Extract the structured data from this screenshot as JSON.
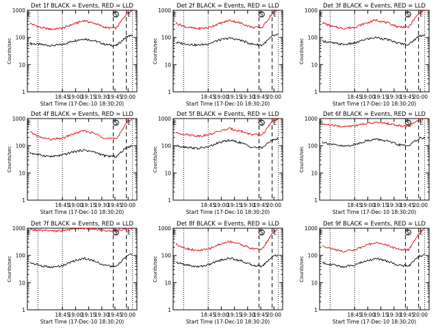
{
  "figure": {
    "ylabel": "Counts/sec",
    "xlabel": "Start Time (17-Dec-10 18:30:20)",
    "ytick_labels": [
      "1",
      "10",
      "100",
      "1000"
    ],
    "xtick_labels": [
      "18:45",
      "19:00",
      "19:15",
      "19:30",
      "19:45",
      "20:00"
    ],
    "markers": [
      "E",
      "S",
      "E"
    ],
    "colors": {
      "events": "#000000",
      "lld": "#e00000",
      "axes": "#000000"
    }
  },
  "chart_data": [
    {
      "type": "line",
      "panel": 1,
      "title": "Det 1f BLACK = Events, RED = LLD",
      "ylog": true,
      "ylim": [
        1,
        1000
      ],
      "x_minutes_from_1830": [
        0,
        10,
        20,
        30,
        40,
        50,
        60,
        70,
        80,
        90,
        95
      ],
      "series": [
        {
          "name": "Events",
          "color": "#000000",
          "values": [
            60,
            55,
            50,
            55,
            75,
            90,
            75,
            55,
            50,
            110,
            120
          ]
        },
        {
          "name": "LLD",
          "color": "#e00000",
          "values": [
            330,
            230,
            200,
            220,
            310,
            420,
            330,
            230,
            220,
            800,
            1000
          ]
        }
      ]
    },
    {
      "type": "line",
      "panel": 2,
      "title": "Det 2f BLACK = Events, RED = LLD",
      "ylog": true,
      "ylim": [
        1,
        1000
      ],
      "x_minutes_from_1830": [
        0,
        10,
        20,
        30,
        40,
        50,
        60,
        70,
        80,
        90,
        95
      ],
      "series": [
        {
          "name": "Events",
          "color": "#000000",
          "values": [
            65,
            58,
            52,
            58,
            80,
            95,
            80,
            58,
            52,
            115,
            125
          ]
        },
        {
          "name": "LLD",
          "color": "#e00000",
          "values": [
            340,
            240,
            210,
            230,
            320,
            430,
            340,
            240,
            230,
            820,
            1000
          ]
        }
      ]
    },
    {
      "type": "line",
      "panel": 3,
      "title": "Det 3f BLACK = Events, RED = LLD",
      "ylog": true,
      "ylim": [
        1,
        1000
      ],
      "x_minutes_from_1830": [
        0,
        10,
        20,
        30,
        40,
        50,
        60,
        70,
        80,
        90,
        95
      ],
      "series": [
        {
          "name": "Events",
          "color": "#000000",
          "values": [
            75,
            62,
            55,
            62,
            85,
            100,
            85,
            62,
            55,
            115,
            125
          ]
        },
        {
          "name": "LLD",
          "color": "#e00000",
          "values": [
            350,
            250,
            215,
            240,
            330,
            440,
            350,
            250,
            240,
            830,
            1000
          ]
        }
      ]
    },
    {
      "type": "line",
      "panel": 4,
      "title": "Det 4f BLACK = Events, RED = LLD",
      "ylog": true,
      "ylim": [
        1,
        1000
      ],
      "x_minutes_from_1830": [
        0,
        10,
        20,
        30,
        40,
        50,
        60,
        70,
        80,
        90,
        95
      ],
      "series": [
        {
          "name": "Events",
          "color": "#000000",
          "values": [
            55,
            45,
            40,
            45,
            60,
            70,
            58,
            42,
            40,
            90,
            100
          ]
        },
        {
          "name": "LLD",
          "color": "#e00000",
          "values": [
            320,
            200,
            170,
            190,
            270,
            360,
            280,
            190,
            180,
            750,
            1000
          ]
        }
      ]
    },
    {
      "type": "line",
      "panel": 5,
      "title": "Det 5f BLACK = Events, RED = LLD",
      "ylog": true,
      "ylim": [
        1,
        1000
      ],
      "x_minutes_from_1830": [
        0,
        10,
        20,
        30,
        40,
        50,
        60,
        70,
        80,
        90,
        95
      ],
      "series": [
        {
          "name": "Events",
          "color": "#000000",
          "values": [
            100,
            90,
            80,
            90,
            130,
            160,
            130,
            90,
            85,
            170,
            180
          ]
        },
        {
          "name": "LLD",
          "color": "#e00000",
          "values": [
            300,
            260,
            230,
            250,
            340,
            430,
            350,
            260,
            250,
            820,
            1000
          ]
        }
      ]
    },
    {
      "type": "line",
      "panel": 6,
      "title": "Det 6f BLACK = Events, RED = LLD",
      "ylog": true,
      "ylim": [
        1,
        1000
      ],
      "x_minutes_from_1830": [
        0,
        10,
        20,
        30,
        40,
        50,
        60,
        70,
        80,
        90,
        95
      ],
      "series": [
        {
          "name": "Events",
          "color": "#000000",
          "values": [
            140,
            110,
            95,
            110,
            150,
            175,
            150,
            110,
            100,
            190,
            200
          ]
        },
        {
          "name": "LLD",
          "color": "#e00000",
          "values": [
            640,
            560,
            500,
            560,
            660,
            720,
            660,
            560,
            520,
            900,
            1000
          ]
        }
      ]
    },
    {
      "type": "line",
      "panel": 7,
      "title": "Det 7f BLACK = Events, RED = LLD",
      "ylog": true,
      "ylim": [
        1,
        1000
      ],
      "x_minutes_from_1830": [
        0,
        10,
        20,
        30,
        40,
        50,
        60,
        70,
        80,
        90,
        95
      ],
      "series": [
        {
          "name": "Events",
          "color": "#000000",
          "values": [
            55,
            42,
            36,
            42,
            62,
            80,
            62,
            42,
            38,
            100,
            110
          ]
        },
        {
          "name": "LLD",
          "color": "#e00000",
          "values": [
            900,
            820,
            780,
            820,
            930,
            990,
            930,
            830,
            800,
            1000,
            1000
          ]
        }
      ]
    },
    {
      "type": "line",
      "panel": 8,
      "title": "Det 8f BLACK = Events, RED = LLD",
      "ylog": true,
      "ylim": [
        1,
        1000
      ],
      "x_minutes_from_1830": [
        0,
        10,
        20,
        30,
        40,
        50,
        60,
        70,
        80,
        90,
        95
      ],
      "series": [
        {
          "name": "Events",
          "color": "#000000",
          "values": [
            55,
            45,
            38,
            45,
            65,
            80,
            65,
            45,
            40,
            95,
            105
          ]
        },
        {
          "name": "LLD",
          "color": "#e00000",
          "values": [
            260,
            180,
            150,
            170,
            250,
            330,
            260,
            180,
            170,
            700,
            1000
          ]
        }
      ]
    },
    {
      "type": "line",
      "panel": 9,
      "title": "Det 9f BLACK = Events, RED = LLD",
      "ylog": true,
      "ylim": [
        1,
        1000
      ],
      "x_minutes_from_1830": [
        0,
        10,
        20,
        30,
        40,
        50,
        60,
        70,
        80,
        90,
        95
      ],
      "series": [
        {
          "name": "Events",
          "color": "#000000",
          "values": [
            55,
            45,
            38,
            45,
            62,
            78,
            62,
            45,
            40,
            95,
            105
          ]
        },
        {
          "name": "LLD",
          "color": "#e00000",
          "values": [
            230,
            170,
            140,
            160,
            230,
            300,
            240,
            170,
            160,
            650,
            1000
          ]
        }
      ]
    }
  ]
}
